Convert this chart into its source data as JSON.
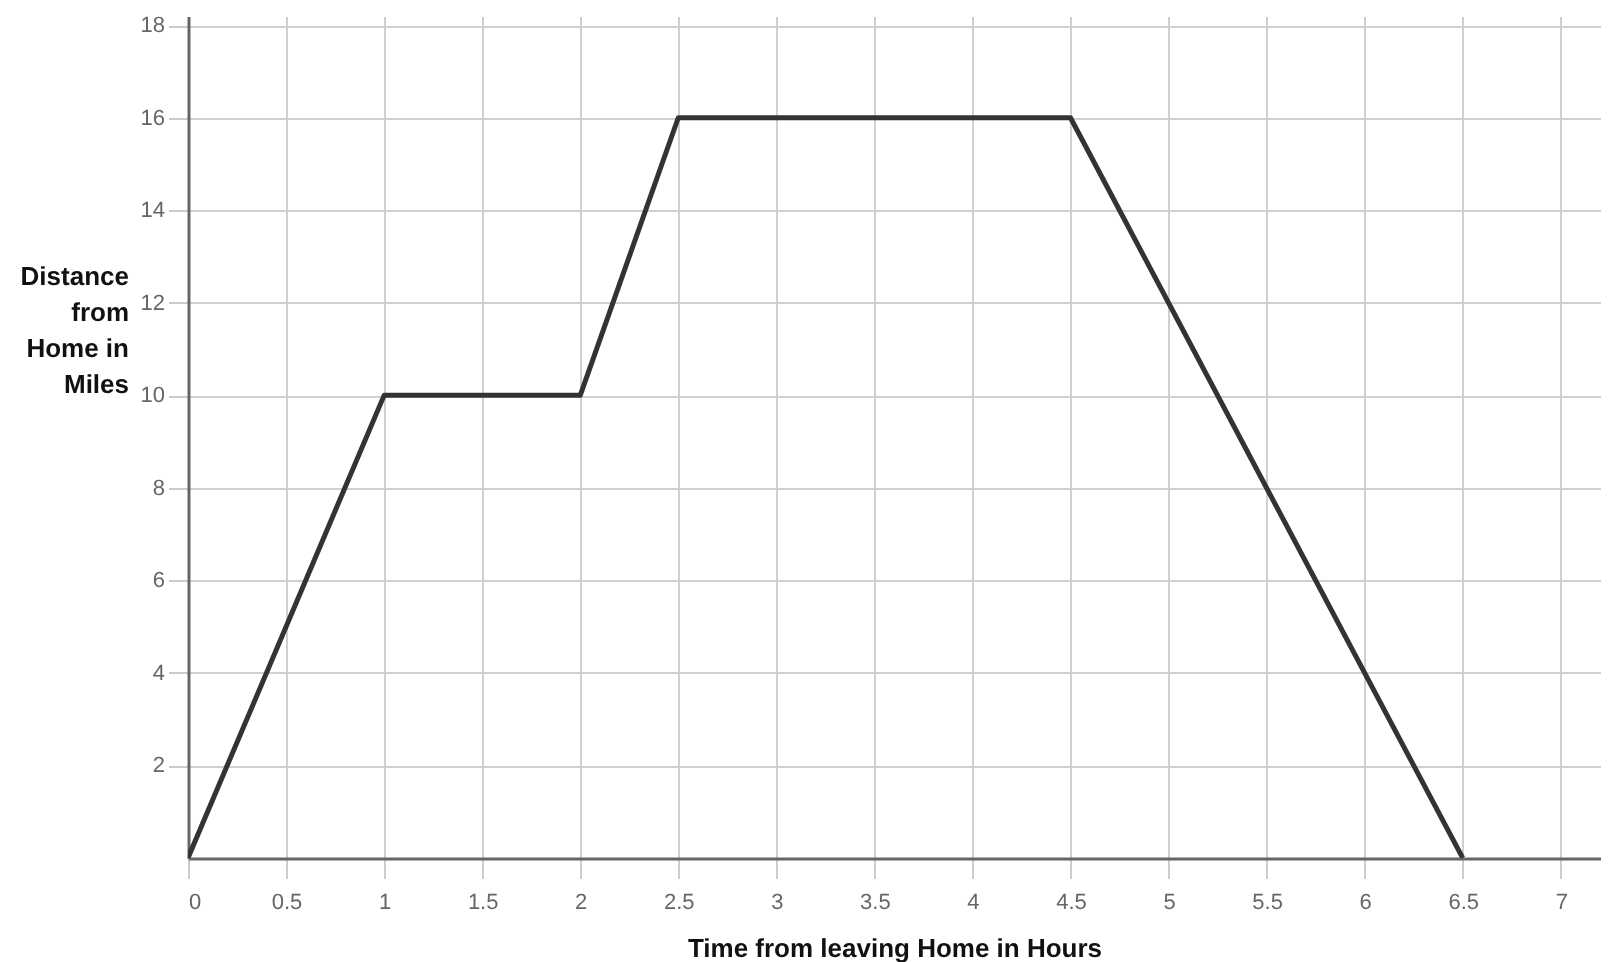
{
  "chart_data": {
    "type": "line",
    "xlabel": "Time from leaving Home in Hours",
    "ylabel": "Distance from Home in Miles",
    "x": [
      0,
      1,
      2,
      2.5,
      4.5,
      6.5
    ],
    "series": [
      {
        "color": "#333333",
        "values": [
          0,
          10,
          10,
          16,
          16,
          0
        ]
      }
    ],
    "xlim": [
      0,
      7.2
    ],
    "ylim": [
      0,
      18.2
    ],
    "xticks": [
      0,
      0.5,
      1,
      1.5,
      2,
      2.5,
      3,
      3.5,
      4,
      4.5,
      5,
      5.5,
      6,
      6.5,
      7
    ],
    "yticks": [
      2,
      4,
      6,
      8,
      10,
      12,
      14,
      16,
      18
    ],
    "grid": true,
    "marker": "none",
    "line_style": "solid"
  }
}
